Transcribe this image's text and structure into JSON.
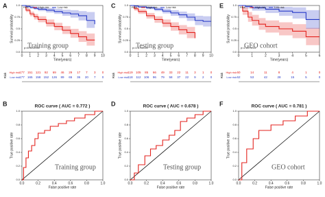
{
  "chart_data": [
    {
      "type": "km",
      "panel": "A",
      "annotation": "Training group",
      "pvalue": "p=6.901e-06",
      "ylabel": "Survival probability",
      "xlabel": "Time(years)",
      "legend_title": "Risk",
      "xlim": [
        0,
        10
      ],
      "xticks": [
        0,
        1,
        2,
        3,
        4,
        5,
        6,
        7,
        8,
        9,
        10
      ],
      "ylim": [
        0,
        1
      ],
      "yticks": [
        {
          "value": 0,
          "label": "0.0"
        },
        0.25,
        0.5,
        0.75,
        {
          "value": 1,
          "label": "1.0"
        }
      ],
      "series": [
        {
          "name": "High risk",
          "color": "#e3211c",
          "x": [
            0,
            0.5,
            1,
            1.5,
            2,
            3,
            4,
            5,
            6,
            7,
            8,
            9
          ],
          "values": [
            1,
            0.9,
            0.82,
            0.76,
            0.7,
            0.62,
            0.55,
            0.47,
            0.4,
            0.33,
            0.26,
            0.26
          ],
          "lower": [
            1,
            0.86,
            0.77,
            0.7,
            0.64,
            0.55,
            0.47,
            0.39,
            0.31,
            0.22,
            0.14,
            0.14
          ],
          "upper": [
            1,
            0.94,
            0.87,
            0.82,
            0.77,
            0.7,
            0.63,
            0.56,
            0.5,
            0.45,
            0.4,
            0.4
          ]
        },
        {
          "name": "Low risk",
          "color": "#2639c7",
          "x": [
            0,
            0.5,
            1,
            1.5,
            2,
            3,
            4,
            5,
            6,
            7,
            8,
            9
          ],
          "values": [
            1,
            0.98,
            0.96,
            0.94,
            0.92,
            0.9,
            0.87,
            0.84,
            0.82,
            0.78,
            0.68,
            0.6
          ],
          "lower": [
            1,
            0.96,
            0.93,
            0.91,
            0.88,
            0.85,
            0.82,
            0.78,
            0.74,
            0.68,
            0.52,
            0.45
          ],
          "upper": [
            1,
            1,
            0.99,
            0.98,
            0.96,
            0.95,
            0.93,
            0.91,
            0.9,
            0.88,
            0.86,
            0.8
          ]
        }
      ],
      "risk_table": {
        "title": "Risk",
        "rows": [
          {
            "name": "High risk",
            "color": "#e3211c",
            "counts": [
              "177",
              "151",
              "121",
              "92",
              "69",
              "46",
              "29",
              "17",
              "7",
              "3",
              "0"
            ]
          },
          {
            "name": "Low risk",
            "color": "#2639c7",
            "counts": [
              "177",
              "165",
              "158",
              "152",
              "126",
              "89",
              "65",
              "36",
              "20",
              "7",
              "0"
            ]
          }
        ]
      }
    },
    {
      "type": "km",
      "panel": "C",
      "annotation": "Testing group",
      "pvalue": "p=1.576e-04",
      "ylabel": "Survival probability",
      "xlabel": "Time(years)",
      "legend_title": "Risk",
      "xlim": [
        0,
        10
      ],
      "xticks": [
        0,
        1,
        2,
        3,
        4,
        5,
        6,
        7,
        8,
        9,
        10
      ],
      "ylim": [
        0,
        1
      ],
      "yticks": [
        {
          "value": 0,
          "label": "0.0"
        },
        0.25,
        0.5,
        0.75,
        {
          "value": 1,
          "label": "1.0"
        }
      ],
      "series": [
        {
          "name": "High risk",
          "color": "#e3211c",
          "x": [
            0,
            0.5,
            1,
            2,
            3,
            4,
            5,
            6,
            7,
            8
          ],
          "values": [
            1,
            0.93,
            0.87,
            0.78,
            0.7,
            0.62,
            0.55,
            0.48,
            0.42,
            0.3
          ],
          "lower": [
            1,
            0.89,
            0.82,
            0.72,
            0.63,
            0.54,
            0.46,
            0.38,
            0.3,
            0.16
          ],
          "upper": [
            1,
            0.97,
            0.92,
            0.84,
            0.77,
            0.7,
            0.64,
            0.58,
            0.54,
            0.46
          ]
        },
        {
          "name": "Low risk",
          "color": "#2639c7",
          "x": [
            0,
            0.5,
            1,
            2,
            3,
            4,
            5,
            6,
            7,
            8,
            9,
            10
          ],
          "values": [
            1,
            0.99,
            0.97,
            0.95,
            0.92,
            0.88,
            0.84,
            0.8,
            0.75,
            0.68,
            0.66,
            0.66
          ],
          "lower": [
            1,
            0.97,
            0.95,
            0.92,
            0.88,
            0.83,
            0.78,
            0.73,
            0.67,
            0.58,
            0.55,
            0.55
          ],
          "upper": [
            1,
            1,
            0.99,
            0.98,
            0.96,
            0.93,
            0.9,
            0.87,
            0.83,
            0.78,
            0.77,
            0.77
          ]
        }
      ],
      "risk_table": {
        "title": "Risk",
        "rows": [
          {
            "name": "High risk",
            "color": "#e3211c",
            "counts": [
              "119",
              "105",
              "85",
              "66",
              "49",
              "33",
              "22",
              "11",
              "3",
              "1",
              "0"
            ]
          },
          {
            "name": "Low risk",
            "color": "#2639c7",
            "counts": [
              "118",
              "112",
              "106",
              "96",
              "79",
              "58",
              "37",
              "22",
              "9",
              "2",
              "0"
            ]
          }
        ]
      }
    },
    {
      "type": "km",
      "panel": "E",
      "annotation": "GEO cohort",
      "pvalue": "p=2.697e-02",
      "ylabel": "Survival probability",
      "xlabel": "Time(years)",
      "legend_title": "Risk",
      "xlim": [
        0,
        6
      ],
      "xticks": [
        0,
        1,
        2,
        3,
        4,
        5,
        6
      ],
      "ylim": [
        0,
        1
      ],
      "yticks": [
        {
          "value": 0,
          "label": "0.0"
        },
        0.25,
        0.5,
        0.75,
        {
          "value": 1,
          "label": "1.0"
        }
      ],
      "series": [
        {
          "name": "High risk",
          "color": "#e3211c",
          "x": [
            0,
            0.3,
            0.7,
            1,
            1.5,
            2,
            3,
            4,
            5,
            6
          ],
          "values": [
            1,
            0.88,
            0.75,
            0.68,
            0.6,
            0.55,
            0.5,
            0.45,
            0.33,
            0.33
          ],
          "lower": [
            1,
            0.8,
            0.65,
            0.57,
            0.48,
            0.42,
            0.36,
            0.3,
            0.15,
            0.15
          ],
          "upper": [
            1,
            0.96,
            0.86,
            0.8,
            0.73,
            0.68,
            0.64,
            0.6,
            0.52,
            0.52
          ]
        },
        {
          "name": "Low risk",
          "color": "#2639c7",
          "x": [
            0,
            0.5,
            1,
            2,
            3,
            4,
            5,
            6
          ],
          "values": [
            1,
            0.98,
            0.95,
            0.92,
            0.88,
            0.85,
            0.7,
            0.7
          ],
          "lower": [
            1,
            0.94,
            0.89,
            0.84,
            0.78,
            0.72,
            0.5,
            0.5
          ],
          "upper": [
            1,
            1,
            1,
            0.99,
            0.97,
            0.96,
            0.9,
            0.9
          ]
        }
      ],
      "risk_table": {
        "title": "Risk",
        "rows": [
          {
            "name": "High risk",
            "color": "#e3211c",
            "counts": [
              "60",
              "14",
              "11",
              "8",
              "4",
              "1",
              "0"
            ]
          },
          {
            "name": "Low risk",
            "color": "#2639c7",
            "counts": [
              "62",
              "53",
              "42",
              "28",
              "15",
              "5",
              "0"
            ]
          }
        ]
      }
    },
    {
      "type": "roc",
      "panel": "B",
      "title": "ROC curve ( AUC = 0.772 )",
      "annotation": "Training group",
      "xlabel": "False positive rate",
      "ylabel": "True positive rate",
      "color": "#e3211c",
      "xlim": [
        0,
        1
      ],
      "ylim": [
        0,
        1
      ],
      "xticks": [
        {
          "value": 0,
          "label": "0.0"
        },
        0.2,
        0.4,
        0.6,
        0.8,
        {
          "value": 1,
          "label": "1.0"
        }
      ],
      "yticks": [
        {
          "value": 0,
          "label": "0.0"
        },
        0.2,
        0.4,
        0.6,
        0.8,
        {
          "value": 1,
          "label": "1.0"
        }
      ],
      "x": [
        0,
        0.02,
        0.05,
        0.08,
        0.12,
        0.16,
        0.2,
        0.28,
        0.35,
        0.45,
        0.55,
        0.65,
        0.78,
        0.9,
        1
      ],
      "values": [
        0,
        0.18,
        0.32,
        0.42,
        0.5,
        0.6,
        0.68,
        0.72,
        0.78,
        0.82,
        0.86,
        0.9,
        0.95,
        1,
        1
      ]
    },
    {
      "type": "roc",
      "panel": "D",
      "title": "ROC curve ( AUC = 0.678 )",
      "annotation": "Testing group",
      "xlabel": "False positive rate",
      "ylabel": "True positive rate",
      "color": "#e3211c",
      "xlim": [
        0,
        1
      ],
      "ylim": [
        0,
        1
      ],
      "xticks": [
        {
          "value": 0,
          "label": "0.0"
        },
        0.2,
        0.4,
        0.6,
        0.8,
        {
          "value": 1,
          "label": "1.0"
        }
      ],
      "yticks": [
        {
          "value": 0,
          "label": "0.0"
        },
        0.2,
        0.4,
        0.6,
        0.8,
        {
          "value": 1,
          "label": "1.0"
        }
      ],
      "x": [
        0,
        0.05,
        0.1,
        0.18,
        0.25,
        0.32,
        0.4,
        0.48,
        0.55,
        0.62,
        0.7,
        0.8,
        0.9,
        1
      ],
      "values": [
        0,
        0.1,
        0.22,
        0.35,
        0.45,
        0.5,
        0.58,
        0.65,
        0.72,
        0.85,
        0.9,
        0.95,
        1,
        1
      ]
    },
    {
      "type": "roc",
      "panel": "F",
      "title": "ROC curve ( AUC = 0.781 )",
      "annotation": "GEO cohort",
      "xlabel": "False positive rate",
      "ylabel": "True positive rate",
      "color": "#e3211c",
      "xlim": [
        0,
        1
      ],
      "ylim": [
        0,
        1
      ],
      "xticks": [
        {
          "value": 0,
          "label": "0.0"
        },
        0.2,
        0.4,
        0.6,
        0.8,
        {
          "value": 1,
          "label": "1.0"
        }
      ],
      "yticks": [
        {
          "value": 0,
          "label": "0.0"
        },
        0.2,
        0.4,
        0.6,
        0.8,
        {
          "value": 1,
          "label": "1.0"
        }
      ],
      "x": [
        0,
        0.04,
        0.1,
        0.18,
        0.25,
        0.4,
        0.55,
        0.7,
        0.85,
        1
      ],
      "values": [
        0,
        0.25,
        0.45,
        0.6,
        0.72,
        0.8,
        0.86,
        0.93,
        1,
        1
      ]
    }
  ]
}
